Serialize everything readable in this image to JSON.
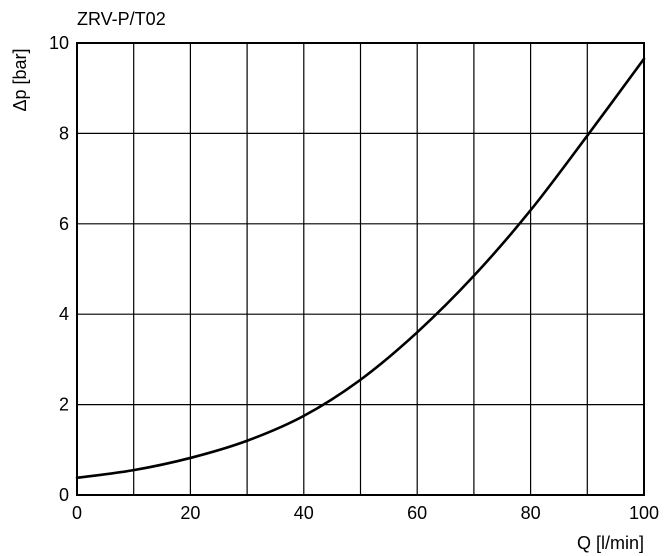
{
  "chart_data": {
    "type": "line",
    "title": "ZRV-P/T02",
    "xlabel": "Q [l/min]",
    "ylabel": "Δp [bar]",
    "xlim": [
      0,
      100
    ],
    "ylim": [
      0,
      10
    ],
    "x_ticks": [
      0,
      20,
      40,
      60,
      80,
      100
    ],
    "y_ticks": [
      0,
      2,
      4,
      6,
      8,
      10
    ],
    "grid": true,
    "grid_x_step": 10,
    "grid_y_step": 2,
    "colors": {
      "line": "#000000",
      "grid": "#000000"
    },
    "series": [
      {
        "x": [
          0,
          10,
          20,
          30,
          40,
          50,
          60,
          70,
          80,
          90,
          100
        ],
        "values": [
          0.38,
          0.55,
          0.82,
          1.2,
          1.75,
          2.55,
          3.6,
          4.85,
          6.3,
          7.95,
          9.65
        ]
      }
    ]
  }
}
